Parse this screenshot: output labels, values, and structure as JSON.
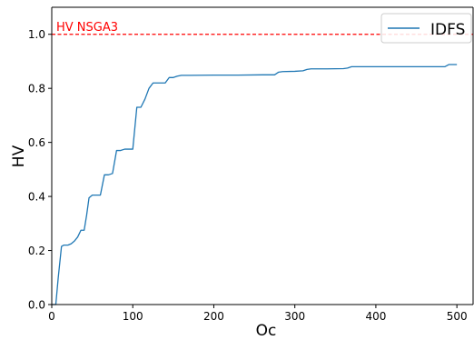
{
  "chart_data": {
    "type": "line",
    "title": "",
    "xlabel": "Oc",
    "ylabel": "HV",
    "xlim": [
      0,
      520
    ],
    "ylim": [
      0,
      1.1
    ],
    "xticks": [
      0,
      100,
      200,
      300,
      400,
      500
    ],
    "yticks": [
      0.0,
      0.2,
      0.4,
      0.6,
      0.8,
      1.0
    ],
    "xtick_labels": [
      "0",
      "100",
      "200",
      "300",
      "400",
      "500"
    ],
    "ytick_labels": [
      "0.0",
      "0.2",
      "0.4",
      "0.6",
      "0.8",
      "1.0"
    ],
    "grid": false,
    "legend_position": "top-right",
    "series": [
      {
        "name": "IDFS",
        "color": "#1f77b4",
        "x": [
          0,
          5,
          8,
          12,
          15,
          20,
          24,
          28,
          32,
          36,
          40,
          43,
          46,
          50,
          55,
          60,
          65,
          70,
          75,
          80,
          85,
          90,
          95,
          100,
          105,
          110,
          115,
          120,
          125,
          130,
          135,
          140,
          145,
          150,
          155,
          160,
          170,
          200,
          230,
          260,
          275,
          280,
          285,
          300,
          310,
          315,
          320,
          340,
          360,
          365,
          370,
          380,
          400,
          450,
          485,
          490,
          500
        ],
        "y": [
          0.0,
          0.0,
          0.1,
          0.215,
          0.22,
          0.22,
          0.225,
          0.235,
          0.25,
          0.275,
          0.275,
          0.33,
          0.395,
          0.405,
          0.405,
          0.405,
          0.48,
          0.48,
          0.485,
          0.57,
          0.57,
          0.575,
          0.575,
          0.575,
          0.73,
          0.73,
          0.76,
          0.8,
          0.82,
          0.82,
          0.82,
          0.82,
          0.84,
          0.84,
          0.845,
          0.848,
          0.848,
          0.849,
          0.849,
          0.85,
          0.85,
          0.86,
          0.862,
          0.863,
          0.865,
          0.87,
          0.872,
          0.872,
          0.873,
          0.875,
          0.88,
          0.88,
          0.88,
          0.88,
          0.88,
          0.888,
          0.888
        ]
      }
    ],
    "reference_line": {
      "label": "HV NSGA3",
      "y": 1.0,
      "color": "#ff0000",
      "style": "dashed"
    },
    "axis_color": "#000000",
    "legend_border_color": "#cccccc"
  }
}
